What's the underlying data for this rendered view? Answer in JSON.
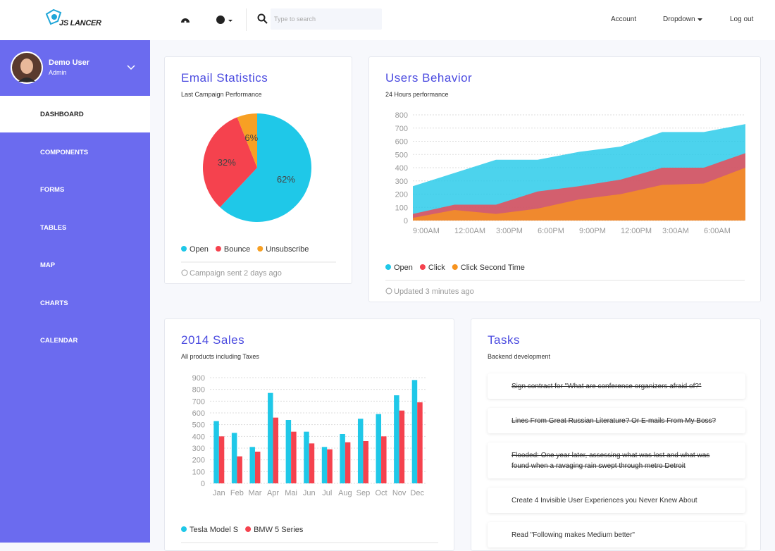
{
  "header": {
    "logo": "JS LANCER",
    "search_placeholder": "Type to search",
    "nav": [
      "Account",
      "Dropdown",
      "Log out"
    ]
  },
  "sidebar": {
    "user": {
      "name": "Demo User",
      "role": "Admin"
    },
    "menu": [
      "DASHBOARD",
      "COMPONENTS",
      "FORMS",
      "TABLES",
      "MAP",
      "CHARTS",
      "CALENDAR"
    ]
  },
  "chart_data": [
    {
      "type": "pie",
      "title": "Email Statistics",
      "subtitle": "Last Campaign Performance",
      "categories": [
        "Open",
        "Bounce",
        "Unsubscribe"
      ],
      "values": [
        62,
        32,
        6
      ],
      "value_labels": [
        "62%",
        "32%",
        "6%"
      ],
      "colors": [
        "#1fc8e8",
        "#f5424e",
        "#f7a024"
      ],
      "footer": "Campaign sent 2 days ago"
    },
    {
      "type": "area",
      "title": "Users Behavior",
      "subtitle": "24 Hours performance",
      "categories": [
        "9:00AM",
        "12:00AM",
        "3:00PM",
        "6:00PM",
        "9:00PM",
        "12:00PM",
        "3:00AM",
        "6:00AM",
        null
      ],
      "series": [
        {
          "name": "Open",
          "color": "#1fc8e8",
          "values": [
            260,
            360,
            460,
            460,
            520,
            560,
            670,
            670,
            730
          ]
        },
        {
          "name": "Click",
          "color": "#f5424e",
          "values": [
            50,
            120,
            120,
            220,
            260,
            310,
            400,
            400,
            510
          ]
        },
        {
          "name": "Click Second Time",
          "color": "#f7931e",
          "values": [
            20,
            80,
            50,
            90,
            160,
            200,
            270,
            280,
            400
          ]
        }
      ],
      "ylim": [
        0,
        800
      ],
      "yticks": [
        0,
        100,
        200,
        300,
        400,
        500,
        600,
        700,
        800
      ],
      "grid": true,
      "footer": "Updated 3 minutes ago"
    },
    {
      "type": "bar",
      "title": "2014 Sales",
      "subtitle": "All products including Taxes",
      "categories": [
        "Jan",
        "Feb",
        "Mar",
        "Apr",
        "Mai",
        "Jun",
        "Jul",
        "Aug",
        "Sep",
        "Oct",
        "Nov",
        "Dec"
      ],
      "series": [
        {
          "name": "Tesla Model S",
          "color": "#1fc8e8",
          "values": [
            530,
            430,
            310,
            770,
            540,
            440,
            310,
            420,
            550,
            590,
            750,
            880
          ]
        },
        {
          "name": "BMW 5 Series",
          "color": "#f5424e",
          "values": [
            400,
            230,
            270,
            560,
            440,
            340,
            290,
            350,
            360,
            400,
            620,
            690
          ]
        }
      ],
      "ylim": [
        0,
        900
      ],
      "yticks": [
        0,
        100,
        200,
        300,
        400,
        500,
        600,
        700,
        800,
        900
      ],
      "grid": true
    }
  ],
  "tasks": {
    "title": "Tasks",
    "subtitle": "Backend development",
    "items": [
      {
        "text": "Sign contract for \"What are conference organizers afraid of?\"",
        "done": true
      },
      {
        "text": "Lines From Great Russian Literature? Or E-mails From My Boss?",
        "done": true
      },
      {
        "text": "Flooded: One year later, assessing what was lost and what was found when a ravaging rain swept through metro Detroit",
        "done": true
      },
      {
        "text": "Create 4 Invisible User Experiences you Never Knew About",
        "done": false
      },
      {
        "text": "Read \"Following makes Medium better\"",
        "done": false
      }
    ]
  }
}
